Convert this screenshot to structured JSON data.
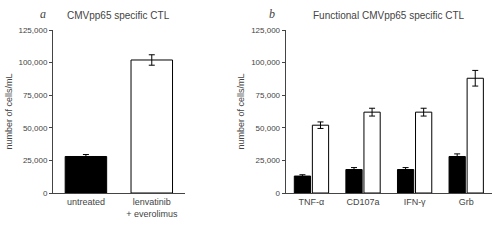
{
  "chart_data": [
    {
      "type": "bar",
      "title": "CMVpp65 specific CTL",
      "annotation": "a",
      "categories": [
        "untreated",
        "lenvatinib\n+ everolimus"
      ],
      "values": [
        28000,
        102000
      ],
      "errors": [
        1500,
        4000
      ],
      "colors": [
        "black",
        "white"
      ],
      "ylabel": "number of cells/mL",
      "ylim": [
        0,
        125000
      ],
      "yticks": [
        0,
        {
          "value": 25000,
          "label": "25,000"
        },
        {
          "value": 50000,
          "label": "50,000"
        },
        {
          "value": 75000,
          "label": "75,000"
        },
        {
          "value": 100000,
          "label": "100,000"
        },
        {
          "value": 125000,
          "label": "125,000"
        }
      ],
      "grid": false
    },
    {
      "type": "bar",
      "title": "Functional CMVpp65 specific CTL",
      "annotation": "b",
      "categories": [
        "TNF-α",
        "CD107a",
        "IFN-γ",
        "Grb"
      ],
      "series": [
        {
          "color": "black",
          "values": [
            13000,
            18000,
            18000,
            28000
          ],
          "errors": [
            1000,
            1500,
            1500,
            2000
          ]
        },
        {
          "color": "white",
          "values": [
            52000,
            62000,
            62000,
            88000
          ],
          "errors": [
            2500,
            3000,
            3000,
            6000
          ]
        }
      ],
      "ylabel": "number of cells/mL",
      "ylim": [
        0,
        125000
      ],
      "yticks": [
        0,
        {
          "value": 25000,
          "label": "25,000"
        },
        {
          "value": 50000,
          "label": "50,000"
        },
        {
          "value": 75000,
          "label": "75,000"
        },
        {
          "value": 100000,
          "label": "100,000"
        },
        {
          "value": 125000,
          "label": "125,000"
        }
      ],
      "grid": false
    }
  ]
}
